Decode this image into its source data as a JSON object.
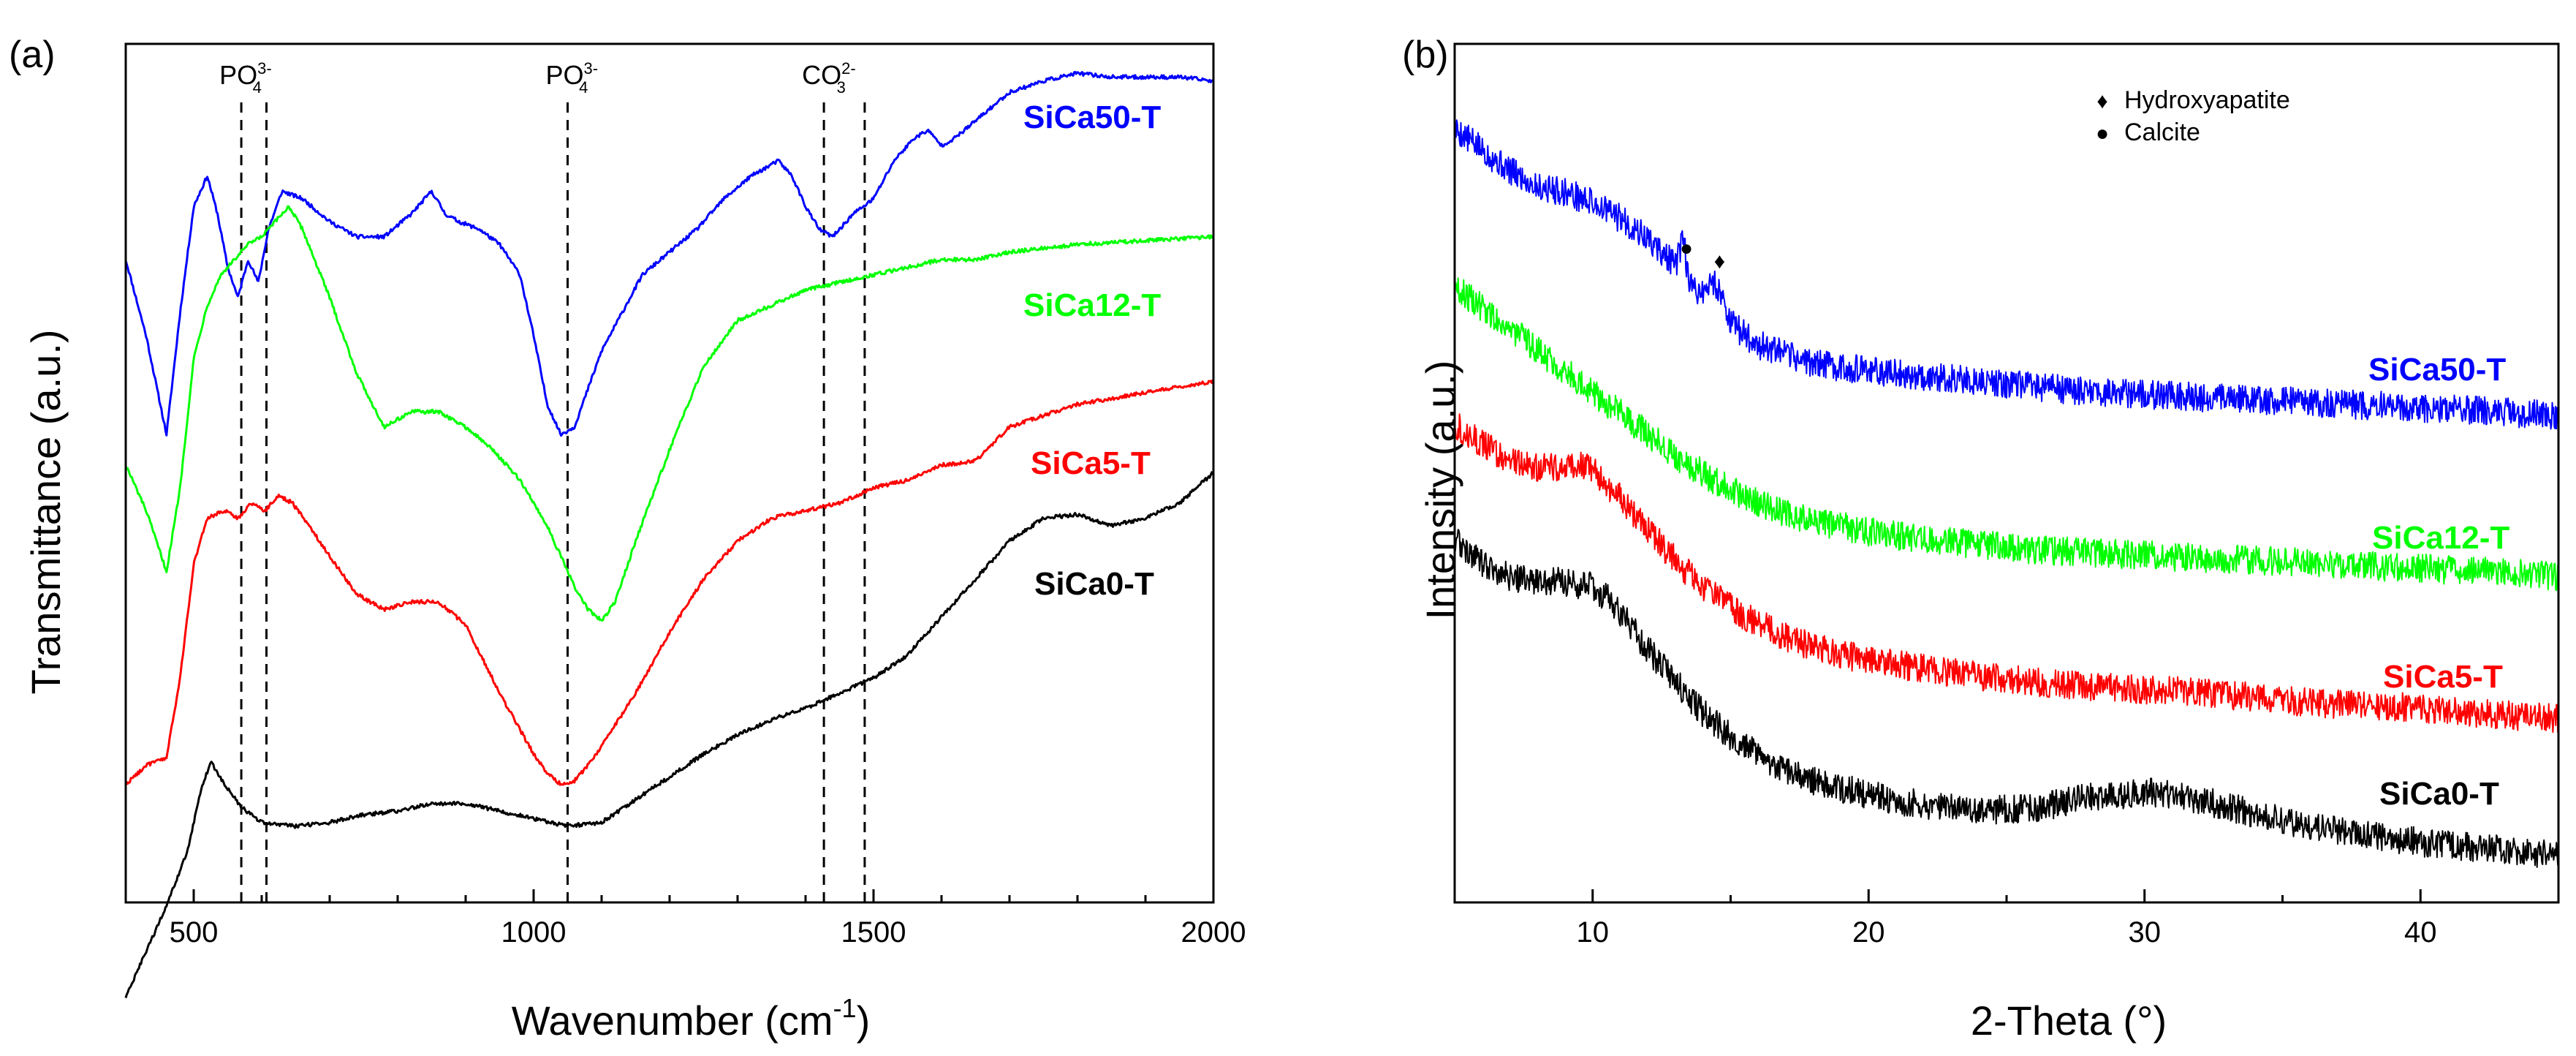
{
  "chart_data": [
    {
      "type": "line",
      "panel_label": "(a)",
      "xlabel_main": "Wavenumber (cm",
      "xlabel_sup": "-1",
      "xlabel_end": ")",
      "ylabel": "Transmittance (a.u.)",
      "xlim": [
        400,
        2000
      ],
      "x_ticks": [
        500,
        1000,
        1500,
        2000
      ],
      "y_ticks": [],
      "reference_lines": [
        {
          "x": 570,
          "label": "PO",
          "sub": "4",
          "sup": "3-"
        },
        {
          "x": 607
        },
        {
          "x": 1050,
          "label": "PO",
          "sub": "4",
          "sup": "3-"
        },
        {
          "x": 1427,
          "label": "CO",
          "sub": "3",
          "sup": "2-"
        },
        {
          "x": 1487
        }
      ],
      "series": [
        {
          "name": "SiCa50-T",
          "color": "#0000ff",
          "x": [
            400,
            430,
            460,
            480,
            500,
            520,
            535,
            550,
            565,
            580,
            595,
            610,
            630,
            660,
            700,
            740,
            780,
            820,
            850,
            870,
            890,
            920,
            950,
            980,
            1000,
            1020,
            1040,
            1060,
            1080,
            1100,
            1130,
            1160,
            1200,
            1240,
            1280,
            1320,
            1360,
            1380,
            1400,
            1420,
            1440,
            1470,
            1500,
            1530,
            1560,
            1580,
            1600,
            1620,
            1660,
            1700,
            1750,
            1800,
            1850,
            1900,
            1950,
            2000
          ],
          "y": [
            7.5,
            6.5,
            5.2,
            6.8,
            8.2,
            8.6,
            8.1,
            7.4,
            7.0,
            7.5,
            7.2,
            7.9,
            8.4,
            8.3,
            8.0,
            7.8,
            7.8,
            8.1,
            8.4,
            8.1,
            8.0,
            7.9,
            7.7,
            7.3,
            6.5,
            5.6,
            5.2,
            5.3,
            5.8,
            6.3,
            6.8,
            7.3,
            7.6,
            7.9,
            8.3,
            8.6,
            8.8,
            8.6,
            8.2,
            7.9,
            7.8,
            8.1,
            8.3,
            8.8,
            9.1,
            9.2,
            9.0,
            9.1,
            9.4,
            9.7,
            9.85,
            9.95,
            9.9,
            9.9,
            9.9,
            9.85
          ]
        },
        {
          "name": "SiCa12-T",
          "color": "#00ff00",
          "x": [
            400,
            430,
            460,
            480,
            500,
            520,
            540,
            560,
            580,
            600,
            620,
            640,
            660,
            700,
            740,
            780,
            820,
            860,
            900,
            940,
            980,
            1020,
            1060,
            1080,
            1100,
            1120,
            1150,
            1200,
            1250,
            1300,
            1350,
            1400,
            1450,
            1500,
            1550,
            1600,
            1650,
            1700,
            1800,
            1900,
            2000
          ],
          "y": [
            4.8,
            4.2,
            3.4,
            4.5,
            6.2,
            6.9,
            7.3,
            7.5,
            7.7,
            7.8,
            8.0,
            8.2,
            7.9,
            7.0,
            6.0,
            5.3,
            5.5,
            5.5,
            5.3,
            5.0,
            4.6,
            4.0,
            3.2,
            2.9,
            2.75,
            3.0,
            3.8,
            5.0,
            6.1,
            6.7,
            6.9,
            7.1,
            7.2,
            7.3,
            7.4,
            7.5,
            7.5,
            7.6,
            7.7,
            7.75,
            7.8
          ]
        },
        {
          "name": "SiCa5-T",
          "color": "#ff0000",
          "x": [
            400,
            430,
            460,
            480,
            500,
            520,
            545,
            565,
            585,
            605,
            625,
            645,
            670,
            700,
            740,
            780,
            820,
            860,
            900,
            950,
            1000,
            1020,
            1040,
            1060,
            1080,
            1100,
            1150,
            1200,
            1250,
            1300,
            1350,
            1400,
            1450,
            1500,
            1550,
            1600,
            1650,
            1700,
            1800,
            1900,
            2000
          ],
          "y": [
            0.6,
            0.85,
            0.95,
            2.0,
            3.5,
            4.1,
            4.2,
            4.1,
            4.3,
            4.2,
            4.4,
            4.3,
            4.0,
            3.6,
            3.1,
            2.9,
            3.0,
            3.0,
            2.7,
            1.8,
            1.0,
            0.75,
            0.6,
            0.65,
            0.85,
            1.1,
            1.8,
            2.6,
            3.3,
            3.8,
            4.1,
            4.2,
            4.3,
            4.5,
            4.6,
            4.8,
            4.85,
            5.3,
            5.6,
            5.75,
            5.9
          ]
        },
        {
          "name": "SiCa0-T",
          "color": "#000000",
          "x": [
            400,
            430,
            460,
            490,
            510,
            525,
            545,
            570,
            600,
            650,
            700,
            750,
            800,
            850,
            900,
            950,
            1000,
            1050,
            1100,
            1150,
            1200,
            1250,
            1300,
            1350,
            1400,
            1450,
            1500,
            1550,
            1600,
            1650,
            1700,
            1750,
            1800,
            1850,
            1900,
            1950,
            2000
          ],
          "y": [
            -2.2,
            -1.6,
            -1.0,
            -0.3,
            0.5,
            0.9,
            0.6,
            0.3,
            0.1,
            0.05,
            0.1,
            0.2,
            0.25,
            0.35,
            0.35,
            0.25,
            0.15,
            0.05,
            0.1,
            0.4,
            0.7,
            1.0,
            1.25,
            1.45,
            1.6,
            1.8,
            2.0,
            2.3,
            2.8,
            3.3,
            3.8,
            4.1,
            4.15,
            4.0,
            4.1,
            4.3,
            4.7
          ]
        }
      ]
    },
    {
      "type": "line",
      "panel_label": "(b)",
      "xlabel": "2-Theta (°)",
      "ylabel": "Intensity (a.u.)",
      "xlim": [
        5,
        45
      ],
      "x_ticks": [
        10,
        20,
        30,
        40
      ],
      "y_ticks": [],
      "legend": [
        {
          "symbol": "♦",
          "label": "Hydroxyapatite"
        },
        {
          "symbol": "●",
          "label": "Calcite"
        }
      ],
      "peak_markers": [
        {
          "x": 13.4,
          "y": 9.6,
          "symbol": "●"
        },
        {
          "x": 14.6,
          "y": 9.35,
          "symbol": "♦"
        }
      ],
      "series": [
        {
          "name": "SiCa50-T",
          "color": "#0000ff",
          "x": [
            5,
            6,
            7,
            8,
            9,
            10,
            11,
            12,
            13,
            13.3,
            13.5,
            14,
            14.4,
            14.8,
            15,
            16,
            17,
            18,
            20,
            22,
            24,
            26,
            28,
            30,
            32,
            34,
            36,
            38,
            40,
            42,
            45
          ],
          "y": [
            12.0,
            11.6,
            11.2,
            10.9,
            10.8,
            10.6,
            10.3,
            9.9,
            9.4,
            9.9,
            9.0,
            8.9,
            9.1,
            8.7,
            8.3,
            7.9,
            7.7,
            7.55,
            7.4,
            7.3,
            7.2,
            7.1,
            7.0,
            6.95,
            6.9,
            6.85,
            6.8,
            6.75,
            6.7,
            6.65,
            6.55
          ]
        },
        {
          "name": "SiCa12-T",
          "color": "#00ff00",
          "x": [
            5,
            6,
            7,
            8,
            9,
            10,
            11,
            12,
            13,
            14,
            15,
            16,
            17,
            18,
            20,
            22,
            24,
            26,
            28,
            30,
            32,
            34,
            36,
            38,
            40,
            42,
            45
          ],
          "y": [
            9.0,
            8.6,
            8.2,
            7.8,
            7.4,
            7.0,
            6.6,
            6.2,
            5.8,
            5.45,
            5.15,
            4.9,
            4.7,
            4.55,
            4.35,
            4.2,
            4.1,
            4.0,
            3.95,
            3.9,
            3.85,
            3.8,
            3.75,
            3.7,
            3.65,
            3.6,
            3.5
          ]
        },
        {
          "name": "SiCa5-T",
          "color": "#ff0000",
          "x": [
            5,
            6,
            7,
            8,
            9,
            9.5,
            10,
            11,
            12,
            13,
            14,
            15,
            16,
            17,
            18,
            20,
            22,
            24,
            26,
            28,
            30,
            32,
            34,
            36,
            38,
            40,
            42,
            45
          ],
          "y": [
            6.4,
            6.0,
            5.7,
            5.55,
            5.6,
            5.65,
            5.5,
            5.0,
            4.4,
            3.8,
            3.3,
            2.9,
            2.6,
            2.35,
            2.15,
            1.9,
            1.75,
            1.6,
            1.5,
            1.4,
            1.35,
            1.3,
            1.2,
            1.1,
            1.05,
            1.0,
            0.9,
            0.8
          ]
        },
        {
          "name": "SiCa0-T",
          "color": "#000000",
          "x": [
            5,
            6,
            7,
            8,
            9,
            10,
            10.5,
            11,
            12,
            13,
            14,
            15,
            16,
            17,
            18,
            20,
            22,
            24,
            26,
            28,
            30,
            31,
            32,
            34,
            36,
            38,
            40,
            42,
            45
          ],
          "y": [
            4.2,
            3.75,
            3.5,
            3.4,
            3.4,
            3.3,
            3.1,
            2.8,
            2.1,
            1.5,
            0.9,
            0.45,
            0.1,
            -0.2,
            -0.4,
            -0.65,
            -0.85,
            -0.95,
            -0.9,
            -0.7,
            -0.6,
            -0.65,
            -0.75,
            -1.0,
            -1.25,
            -1.4,
            -1.55,
            -1.65,
            -1.8
          ]
        }
      ]
    }
  ]
}
